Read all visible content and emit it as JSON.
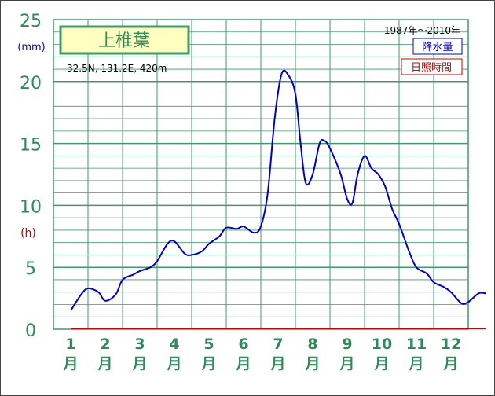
{
  "station": {
    "name": "上椎葉",
    "coords": "32.5N,  131.2E,  420m"
  },
  "period": "1987年〜2010年",
  "legend": {
    "precip": "降水量",
    "sunshine": "日照時間"
  },
  "units": {
    "precip": "(mm)",
    "sunshine": "(h)"
  },
  "month_suffix": "月",
  "colors": {
    "grid": "#3f9a68",
    "axis_text": "#2e8b57",
    "precip": "#0000cc",
    "sunshine": "#cc0000",
    "title_bg": "#ffffc0"
  },
  "chart_data": {
    "type": "line",
    "title": "上椎葉",
    "subtitle": "1987年〜2010年",
    "xlabel": "",
    "ylabel": "(mm)",
    "ylabel2": "(h)",
    "categories": [
      "1",
      "2",
      "3",
      "4",
      "5",
      "6",
      "7",
      "8",
      "9",
      "10",
      "11",
      "12"
    ],
    "ylim": [
      0,
      25
    ],
    "yticks": [
      0,
      5,
      10,
      15,
      20,
      25
    ],
    "grid": true,
    "legend_position": "top-right",
    "series": [
      {
        "name": "降水量",
        "color": "#0000cc",
        "x": [
          0.5,
          0.8,
          1.0,
          1.3,
          1.5,
          1.8,
          2.0,
          2.3,
          2.5,
          2.8,
          3.0,
          3.3,
          3.5,
          3.8,
          4.0,
          4.3,
          4.5,
          4.8,
          5.0,
          5.3,
          5.5,
          5.8,
          6.0,
          6.2,
          6.4,
          6.6,
          6.8,
          7.0,
          7.15,
          7.3,
          7.5,
          7.7,
          7.85,
          8.0,
          8.3,
          8.5,
          8.65,
          8.8,
          9.0,
          9.2,
          9.4,
          9.6,
          9.8,
          10.0,
          10.3,
          10.5,
          10.8,
          11.0,
          11.3,
          11.5,
          11.8,
          12.0,
          12.3,
          12.5
        ],
        "y": [
          1.5,
          2.8,
          3.3,
          3.0,
          2.3,
          2.8,
          4.0,
          4.4,
          4.7,
          5.0,
          5.5,
          6.9,
          7.1,
          6.1,
          6.0,
          6.3,
          6.9,
          7.5,
          8.2,
          8.1,
          8.3,
          7.8,
          8.3,
          11.0,
          17.0,
          20.6,
          20.5,
          19.0,
          15.0,
          11.8,
          12.5,
          15.0,
          15.2,
          14.6,
          12.6,
          10.5,
          10.2,
          12.5,
          14.0,
          13.0,
          12.5,
          11.5,
          9.7,
          8.5,
          6.2,
          5.0,
          4.5,
          3.8,
          3.4,
          3.0,
          2.1,
          2.2,
          2.9,
          2.9
        ]
      },
      {
        "name": "日照時間",
        "color": "#cc0000",
        "x": [
          0.5,
          12.5
        ],
        "y": [
          0,
          0
        ]
      }
    ]
  }
}
